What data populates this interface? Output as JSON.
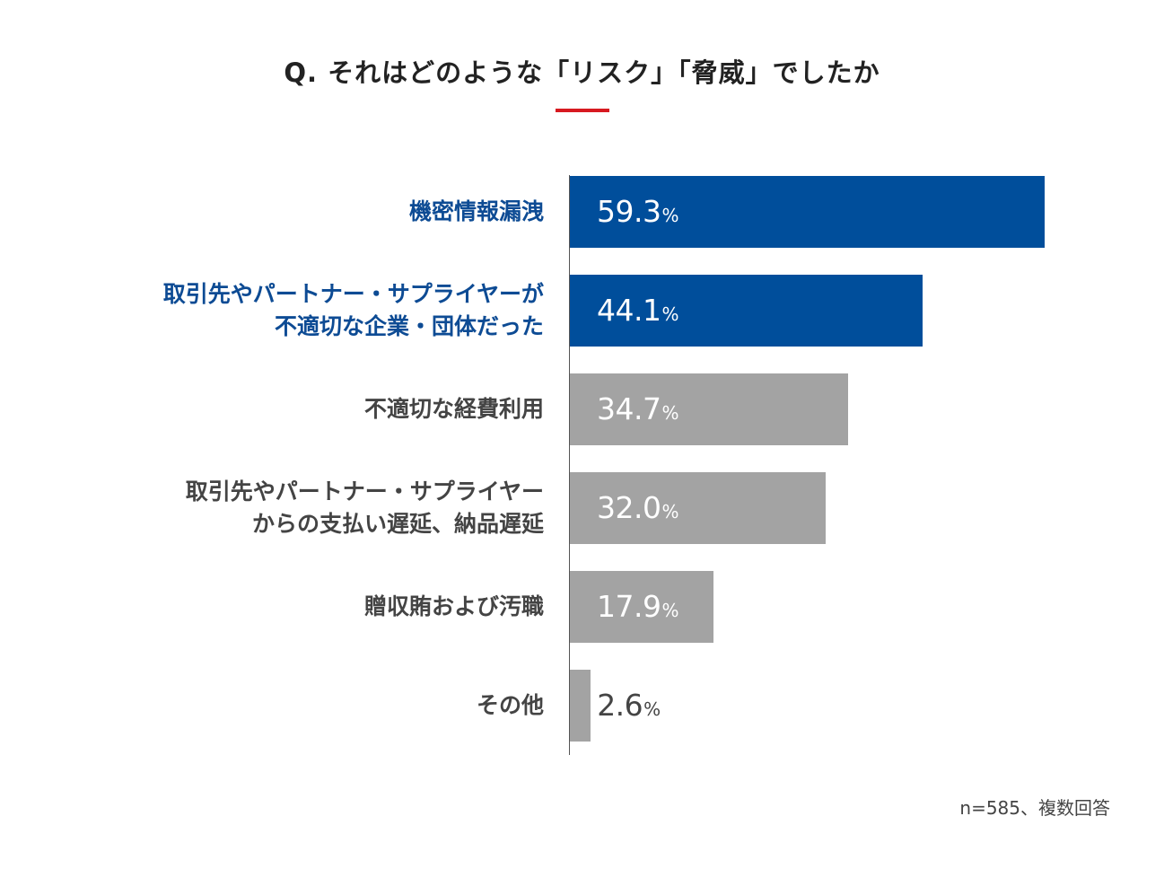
{
  "chart_data": {
    "type": "bar",
    "orientation": "horizontal",
    "title": "Q. それはどのような「リスク」「脅威」でしたか",
    "categories": [
      "機密情報漏洩",
      "取引先やパートナー・サプライヤーが\n不適切な企業・団体だった",
      "不適切な経費利用",
      "取引先やパートナー・サプライヤー\nからの支払い遅延、納品遅延",
      "贈収賄および汚職",
      "その他"
    ],
    "values": [
      59.3,
      44.1,
      34.7,
      32.0,
      17.9,
      2.6
    ],
    "value_labels": [
      "59.3",
      "44.1",
      "34.7",
      "32.0",
      "17.9",
      "2.6"
    ],
    "unit": "%",
    "highlighted": [
      true,
      true,
      false,
      false,
      false,
      false
    ],
    "xlim": [
      0,
      100
    ],
    "xlabel": "",
    "ylabel": "",
    "grid": false,
    "legend": "none",
    "note": "n=585、複数回答"
  },
  "colors": {
    "highlight_bar": "#004E9B",
    "highlight_text": "#0D4B94",
    "normal_bar": "#A3A3A3",
    "normal_text": "#444444",
    "inner_label": "#FFFFFF",
    "outer_label": "#444444",
    "accent_rule": "#D71920"
  }
}
